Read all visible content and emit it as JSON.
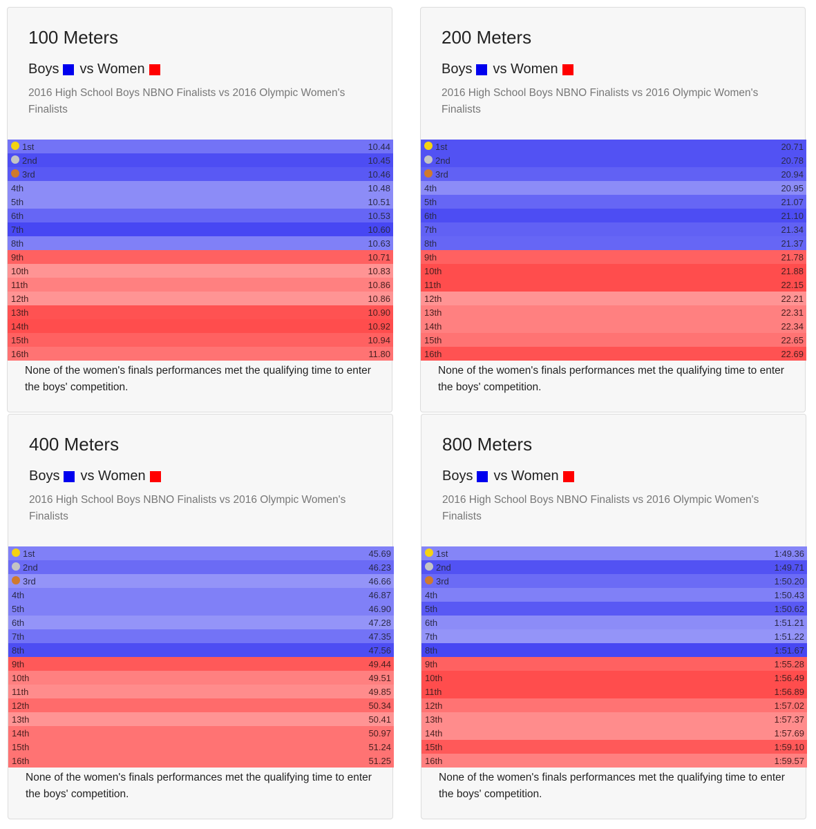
{
  "legend": {
    "boys_label": "Boys",
    "women_label": "vs Women",
    "boys_color": "#0000ee",
    "women_color": "#ff0000"
  },
  "medal_colors": {
    "gold": "#f5d312",
    "silver": "#c4c4c4",
    "bronze": "#d17a2c"
  },
  "chart_data": [
    {
      "type": "table",
      "title": "100 Meters",
      "subtitle": "2016 High School Boys NBNO Finalists vs 2016 Olympic Women's Finalists",
      "note": "None of the women's finals performances met the qualifying time to enter the boys' competition.",
      "rows": [
        {
          "rank": "1st",
          "time": "10.44",
          "group": "boys",
          "shade": 0.55
        },
        {
          "rank": "2nd",
          "time": "10.45",
          "group": "boys",
          "shade": 0.7
        },
        {
          "rank": "3rd",
          "time": "10.46",
          "group": "boys",
          "shade": 0.65
        },
        {
          "rank": "4th",
          "time": "10.48",
          "group": "boys",
          "shade": 0.45
        },
        {
          "rank": "5th",
          "time": "10.51",
          "group": "boys",
          "shade": 0.45
        },
        {
          "rank": "6th",
          "time": "10.53",
          "group": "boys",
          "shade": 0.6
        },
        {
          "rank": "7th",
          "time": "10.60",
          "group": "boys",
          "shade": 0.72
        },
        {
          "rank": "8th",
          "time": "10.63",
          "group": "boys",
          "shade": 0.5
        },
        {
          "rank": "9th",
          "time": "10.71",
          "group": "women",
          "shade": 0.62
        },
        {
          "rank": "10th",
          "time": "10.83",
          "group": "women",
          "shade": 0.42
        },
        {
          "rank": "11th",
          "time": "10.86",
          "group": "women",
          "shade": 0.5
        },
        {
          "rank": "12th",
          "time": "10.86",
          "group": "women",
          "shade": 0.42
        },
        {
          "rank": "13th",
          "time": "10.90",
          "group": "women",
          "shade": 0.68
        },
        {
          "rank": "14th",
          "time": "10.92",
          "group": "women",
          "shade": 0.7
        },
        {
          "rank": "15th",
          "time": "10.94",
          "group": "women",
          "shade": 0.62
        },
        {
          "rank": "16th",
          "time": "11.80",
          "group": "women",
          "shade": 0.55
        }
      ]
    },
    {
      "type": "table",
      "title": "200 Meters",
      "subtitle": "2016 High School Boys NBNO Finalists vs 2016 Olympic Women's Finalists",
      "note": "None of the women's finals performances met the qualifying time to enter the boys' competition.",
      "rows": [
        {
          "rank": "1st",
          "time": "20.71",
          "group": "boys",
          "shade": 0.68
        },
        {
          "rank": "2nd",
          "time": "20.78",
          "group": "boys",
          "shade": 0.68
        },
        {
          "rank": "3rd",
          "time": "20.94",
          "group": "boys",
          "shade": 0.62
        },
        {
          "rank": "4th",
          "time": "20.95",
          "group": "boys",
          "shade": 0.45
        },
        {
          "rank": "5th",
          "time": "21.07",
          "group": "boys",
          "shade": 0.6
        },
        {
          "rank": "6th",
          "time": "21.10",
          "group": "boys",
          "shade": 0.7
        },
        {
          "rank": "7th",
          "time": "21.34",
          "group": "boys",
          "shade": 0.62
        },
        {
          "rank": "8th",
          "time": "21.37",
          "group": "boys",
          "shade": 0.6
        },
        {
          "rank": "9th",
          "time": "21.78",
          "group": "women",
          "shade": 0.62
        },
        {
          "rank": "10th",
          "time": "21.88",
          "group": "women",
          "shade": 0.7
        },
        {
          "rank": "11th",
          "time": "22.15",
          "group": "women",
          "shade": 0.7
        },
        {
          "rank": "12th",
          "time": "22.21",
          "group": "women",
          "shade": 0.42
        },
        {
          "rank": "13th",
          "time": "22.31",
          "group": "women",
          "shade": 0.5
        },
        {
          "rank": "14th",
          "time": "22.34",
          "group": "women",
          "shade": 0.5
        },
        {
          "rank": "15th",
          "time": "22.65",
          "group": "women",
          "shade": 0.55
        },
        {
          "rank": "16th",
          "time": "22.69",
          "group": "women",
          "shade": 0.68
        }
      ]
    },
    {
      "type": "table",
      "title": "400 Meters",
      "subtitle": "2016 High School Boys NBNO Finalists vs 2016 Olympic Women's Finalists",
      "note": "None of the women's finals performances met the qualifying time to enter the boys' competition.",
      "rows": [
        {
          "rank": "1st",
          "time": "45.69",
          "group": "boys",
          "shade": 0.5
        },
        {
          "rank": "2nd",
          "time": "46.23",
          "group": "boys",
          "shade": 0.58
        },
        {
          "rank": "3rd",
          "time": "46.66",
          "group": "boys",
          "shade": 0.42
        },
        {
          "rank": "4th",
          "time": "46.87",
          "group": "boys",
          "shade": 0.5
        },
        {
          "rank": "5th",
          "time": "46.90",
          "group": "boys",
          "shade": 0.5
        },
        {
          "rank": "6th",
          "time": "47.28",
          "group": "boys",
          "shade": 0.42
        },
        {
          "rank": "7th",
          "time": "47.35",
          "group": "boys",
          "shade": 0.55
        },
        {
          "rank": "8th",
          "time": "47.56",
          "group": "boys",
          "shade": 0.7
        },
        {
          "rank": "9th",
          "time": "49.44",
          "group": "women",
          "shade": 0.65
        },
        {
          "rank": "10th",
          "time": "49.51",
          "group": "women",
          "shade": 0.5
        },
        {
          "rank": "11th",
          "time": "49.85",
          "group": "women",
          "shade": 0.45
        },
        {
          "rank": "12th",
          "time": "50.34",
          "group": "women",
          "shade": 0.58
        },
        {
          "rank": "13th",
          "time": "50.41",
          "group": "women",
          "shade": 0.42
        },
        {
          "rank": "14th",
          "time": "50.97",
          "group": "women",
          "shade": 0.55
        },
        {
          "rank": "15th",
          "time": "51.24",
          "group": "women",
          "shade": 0.55
        },
        {
          "rank": "16th",
          "time": "51.25",
          "group": "women",
          "shade": 0.55
        }
      ]
    },
    {
      "type": "table",
      "title": "800 Meters",
      "subtitle": "2016 High School Boys NBNO Finalists vs 2016 Olympic Women's Finalists",
      "note": "None of the women's finals performances met the qualifying time to enter the boys' competition.",
      "rows": [
        {
          "rank": "1st",
          "time": "1:49.36",
          "group": "boys",
          "shade": 0.48
        },
        {
          "rank": "2nd",
          "time": "1:49.71",
          "group": "boys",
          "shade": 0.68
        },
        {
          "rank": "3rd",
          "time": "1:50.20",
          "group": "boys",
          "shade": 0.58
        },
        {
          "rank": "4th",
          "time": "1:50.43",
          "group": "boys",
          "shade": 0.5
        },
        {
          "rank": "5th",
          "time": "1:50.62",
          "group": "boys",
          "shade": 0.65
        },
        {
          "rank": "6th",
          "time": "1:51.21",
          "group": "boys",
          "shade": 0.45
        },
        {
          "rank": "7th",
          "time": "1:51.22",
          "group": "boys",
          "shade": 0.42
        },
        {
          "rank": "8th",
          "time": "1:51.67",
          "group": "boys",
          "shade": 0.72
        },
        {
          "rank": "9th",
          "time": "1:55.28",
          "group": "women",
          "shade": 0.62
        },
        {
          "rank": "10th",
          "time": "1:56.49",
          "group": "women",
          "shade": 0.7
        },
        {
          "rank": "11th",
          "time": "1:56.89",
          "group": "women",
          "shade": 0.7
        },
        {
          "rank": "12th",
          "time": "1:57.02",
          "group": "women",
          "shade": 0.55
        },
        {
          "rank": "13th",
          "time": "1:57.37",
          "group": "women",
          "shade": 0.45
        },
        {
          "rank": "14th",
          "time": "1:57.69",
          "group": "women",
          "shade": 0.45
        },
        {
          "rank": "15th",
          "time": "1:59.10",
          "group": "women",
          "shade": 0.65
        },
        {
          "rank": "16th",
          "time": "1:59.57",
          "group": "women",
          "shade": 0.5
        }
      ]
    }
  ]
}
